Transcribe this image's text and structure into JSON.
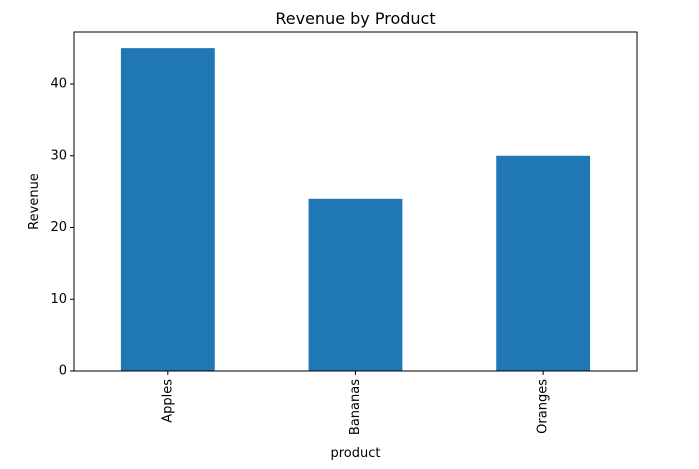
{
  "colors": {
    "bar": "#1f77b4",
    "axis": "#000000",
    "background": "#ffffff"
  },
  "chart_data": {
    "type": "bar",
    "title": "Revenue by Product",
    "xlabel": "product",
    "ylabel": "Revenue",
    "categories": [
      "Apples",
      "Bananas",
      "Oranges"
    ],
    "values": [
      45,
      24,
      30
    ],
    "ylim": [
      0,
      47.25
    ],
    "yticks": [
      0,
      10,
      20,
      30,
      40
    ],
    "grid": false,
    "legend": "none",
    "xtick_rotation": "vertical"
  }
}
